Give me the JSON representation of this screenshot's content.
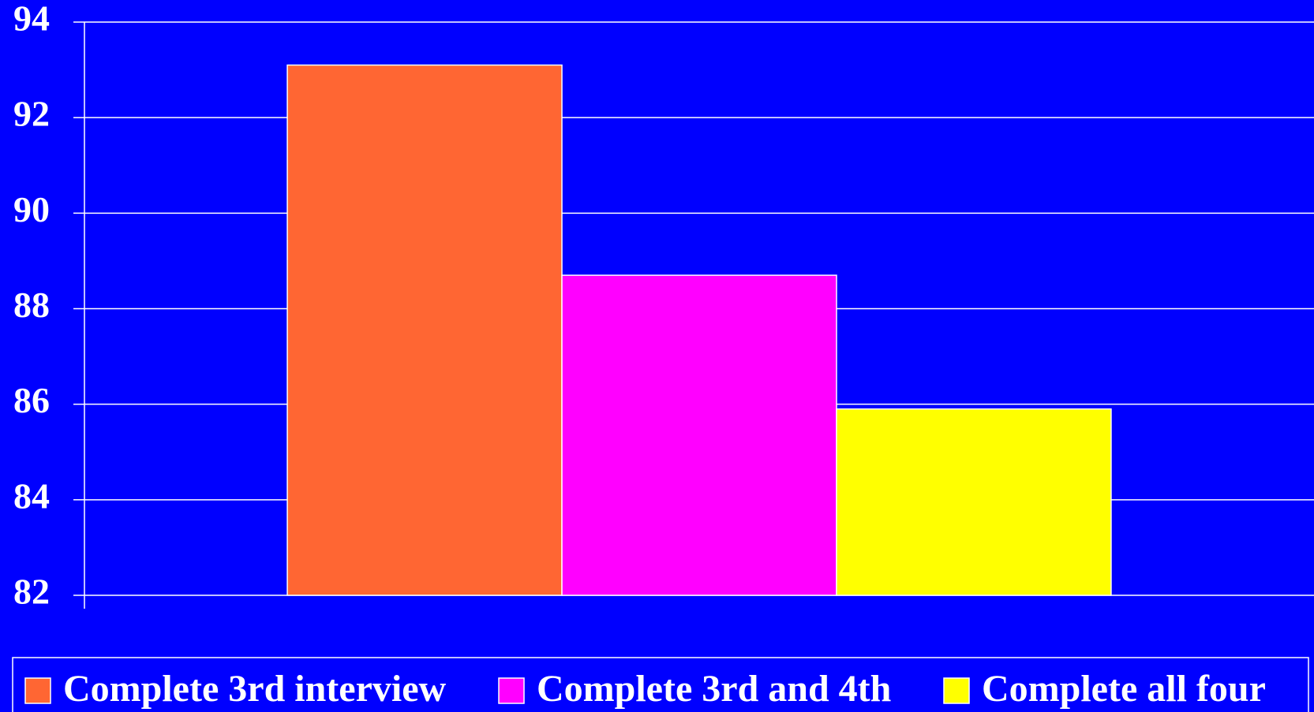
{
  "chart_data": {
    "type": "bar",
    "categories": [
      null
    ],
    "series": [
      {
        "name": "Complete 3rd interview",
        "color": "#ff6633",
        "values": [
          93.1
        ]
      },
      {
        "name": "Complete 3rd and 4th",
        "color": "#ff00ff",
        "values": [
          88.7
        ]
      },
      {
        "name": "Complete all four",
        "color": "#ffff00",
        "values": [
          85.9
        ]
      }
    ],
    "ylim": [
      82,
      94
    ],
    "yticks": [
      82,
      84,
      86,
      88,
      90,
      92,
      94
    ],
    "grid": true,
    "legend": "bottom"
  }
}
